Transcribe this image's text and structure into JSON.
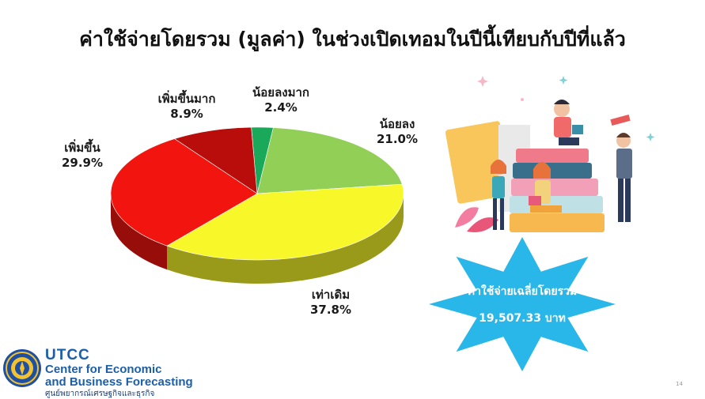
{
  "slide": {
    "title": "ค่าใช้จ่ายโดยรวม (มูลค่า) ในช่วงเปิดเทอมในปีนี้เทียบกับปีที่แล้ว",
    "page_number": "14"
  },
  "chart_data": {
    "type": "pie",
    "style": "3d",
    "title": "ค่าใช้จ่ายโดยรวม (มูลค่า) ในช่วงเปิดเทอมในปีนี้เทียบกับปีที่แล้ว",
    "slices": [
      {
        "label": "น้อยลงมาก",
        "value": 2.4,
        "display": "2.4%",
        "color": "#1aa85a"
      },
      {
        "label": "น้อยลง",
        "value": 21.0,
        "display": "21.0%",
        "color": "#92cf56"
      },
      {
        "label": "เท่าเดิม",
        "value": 37.8,
        "display": "37.8%",
        "color": "#f7f72a"
      },
      {
        "label": "เพิ่มขึ้น",
        "value": 29.9,
        "display": "29.9%",
        "color": "#f2150f"
      },
      {
        "label": "เพิ่มขึ้นมาก",
        "value": 8.9,
        "display": "8.9%",
        "color": "#b80d0a"
      }
    ]
  },
  "callout": {
    "label": "ค่าใช้จ่ายเฉลี่ยโดยรวม",
    "value": "19,507.33 บาท",
    "color": "#29b6e8"
  },
  "logo": {
    "name": "UTCC",
    "line1": "Center for Economic",
    "line2": "and Business Forecasting",
    "thai": "ศูนย์พยากรณ์เศรษฐกิจและธุรกิจ",
    "color": "#1b5fa8"
  }
}
